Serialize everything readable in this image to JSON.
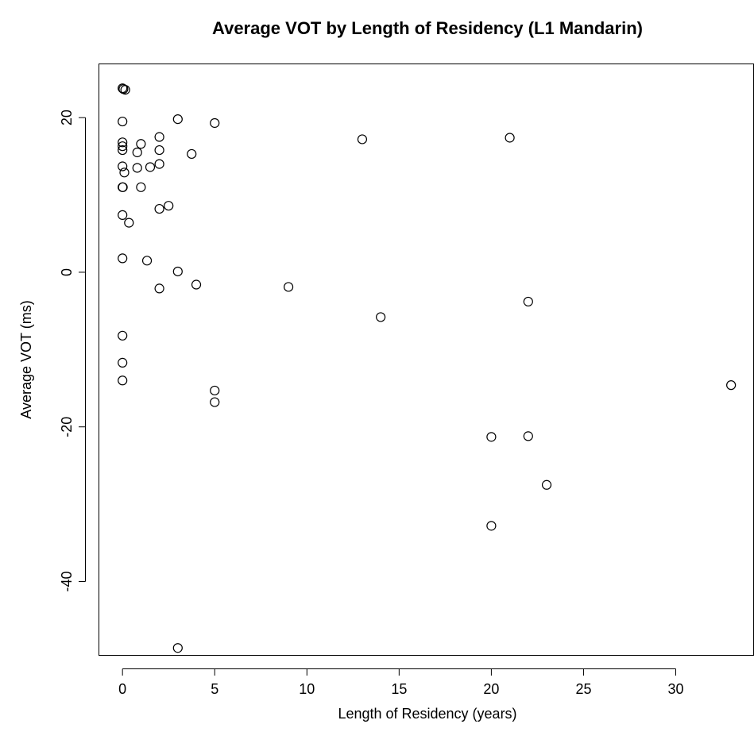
{
  "chart_data": {
    "type": "scatter",
    "title": "Average VOT by Length of Residency (L1 Mandarin)",
    "xlabel": "Length of Residency (years)",
    "ylabel": "Average VOT (ms)",
    "xlim": [
      -1.3,
      34.2
    ],
    "ylim": [
      -49.5,
      27
    ],
    "xticks": [
      0,
      5,
      10,
      15,
      20,
      25,
      30
    ],
    "yticks": [
      -40,
      -20,
      0,
      20
    ],
    "xtick_labels": [
      "0",
      "5",
      "10",
      "15",
      "20",
      "25",
      "30"
    ],
    "ytick_labels": [
      "-40",
      "-20",
      "0",
      "20"
    ],
    "grid": false,
    "marker": "open-circle",
    "color": "#000000",
    "points": [
      {
        "x": 0.0,
        "y": 23.8
      },
      {
        "x": 0.05,
        "y": 23.7
      },
      {
        "x": 0.15,
        "y": 23.6
      },
      {
        "x": 0.0,
        "y": 19.5
      },
      {
        "x": 0.0,
        "y": 16.8
      },
      {
        "x": 0.0,
        "y": 16.3
      },
      {
        "x": 0.0,
        "y": 15.8
      },
      {
        "x": 0.0,
        "y": 13.7
      },
      {
        "x": 0.1,
        "y": 12.9
      },
      {
        "x": 0.0,
        "y": 11.0
      },
      {
        "x": 0.02,
        "y": 11.0
      },
      {
        "x": 0.0,
        "y": 7.4
      },
      {
        "x": 0.35,
        "y": 6.4
      },
      {
        "x": 0.0,
        "y": 1.8
      },
      {
        "x": 0.0,
        "y": -8.2
      },
      {
        "x": 0.0,
        "y": -11.7
      },
      {
        "x": 0.0,
        "y": -14.0
      },
      {
        "x": 0.8,
        "y": 15.5
      },
      {
        "x": 0.8,
        "y": 13.5
      },
      {
        "x": 1.0,
        "y": 16.6
      },
      {
        "x": 1.0,
        "y": 11.0
      },
      {
        "x": 1.5,
        "y": 13.6
      },
      {
        "x": 1.33,
        "y": 1.5
      },
      {
        "x": 2.0,
        "y": 17.5
      },
      {
        "x": 2.0,
        "y": 15.8
      },
      {
        "x": 2.0,
        "y": 14.0
      },
      {
        "x": 2.0,
        "y": 8.2
      },
      {
        "x": 2.0,
        "y": -2.1
      },
      {
        "x": 2.5,
        "y": 8.6
      },
      {
        "x": 3.0,
        "y": 19.8
      },
      {
        "x": 3.0,
        "y": 0.1
      },
      {
        "x": 3.0,
        "y": -48.6
      },
      {
        "x": 3.75,
        "y": 15.3
      },
      {
        "x": 4.0,
        "y": -1.6
      },
      {
        "x": 5.0,
        "y": 19.3
      },
      {
        "x": 5.0,
        "y": -15.3
      },
      {
        "x": 5.0,
        "y": -16.8
      },
      {
        "x": 9.0,
        "y": -1.9
      },
      {
        "x": 13.0,
        "y": 17.2
      },
      {
        "x": 14.0,
        "y": -5.8
      },
      {
        "x": 20.0,
        "y": -21.3
      },
      {
        "x": 20.0,
        "y": -32.8
      },
      {
        "x": 21.0,
        "y": 17.4
      },
      {
        "x": 22.0,
        "y": -3.8
      },
      {
        "x": 22.0,
        "y": -21.2
      },
      {
        "x": 23.0,
        "y": -27.5
      },
      {
        "x": 33.0,
        "y": -14.6
      }
    ]
  }
}
